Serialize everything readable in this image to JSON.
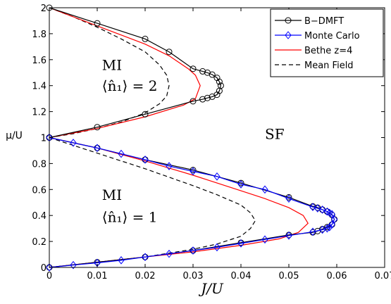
{
  "chart_data": {
    "type": "line",
    "xlabel": "J/U",
    "ylabel": "μ/U",
    "xlim": [
      0,
      0.07
    ],
    "ylim": [
      0,
      2
    ],
    "xticks": [
      0,
      0.01,
      0.02,
      0.03,
      0.04,
      0.05,
      0.06,
      0.07
    ],
    "xtick_labels": [
      "0",
      "0.01",
      "0.02",
      "0.03",
      "0.04",
      "0.05",
      "0.06",
      "0.07"
    ],
    "yticks": [
      0,
      0.2,
      0.4,
      0.6,
      0.8,
      1,
      1.2,
      1.4,
      1.6,
      1.8,
      2
    ],
    "ytick_labels": [
      "0",
      "0.2",
      "0.4",
      "0.6",
      "0.8",
      "1",
      "1.2",
      "1.4",
      "1.6",
      "1.8",
      "2"
    ],
    "grid": false,
    "legend_position": "top-right",
    "annotations": [
      {
        "text": "MI",
        "x": 0.011,
        "y": 1.52
      },
      {
        "text": "⟨n̂₁⟩ = 2",
        "x": 0.011,
        "y": 1.36
      },
      {
        "text": "SF",
        "x": 0.045,
        "y": 0.99
      },
      {
        "text": "MI",
        "x": 0.011,
        "y": 0.52
      },
      {
        "text": "⟨n̂₁⟩ = 1",
        "x": 0.011,
        "y": 0.35
      }
    ],
    "series": [
      {
        "name": "B−DMFT",
        "color": "#000000",
        "marker": "circle",
        "dash": "",
        "lobes": [
          {
            "x": [
              0,
              0.01,
              0.02,
              0.03,
              0.032,
              0.033,
              0.034,
              0.035,
              0.0355,
              0.0358,
              0.0355,
              0.035,
              0.034,
              0.033,
              0.032,
              0.03,
              0.025,
              0.02,
              0.01,
              0
            ],
            "y": [
              1.0,
              1.08,
              1.18,
              1.28,
              1.295,
              1.305,
              1.315,
              1.33,
              1.36,
              1.4,
              1.43,
              1.46,
              1.485,
              1.5,
              1.51,
              1.53,
              1.66,
              1.76,
              1.88,
              2.0
            ]
          },
          {
            "x": [
              0,
              0.01,
              0.02,
              0.03,
              0.04,
              0.05,
              0.055,
              0.056,
              0.057,
              0.058,
              0.059,
              0.0595,
              0.059,
              0.058,
              0.057,
              0.056,
              0.055,
              0.05,
              0.04,
              0.03,
              0.02,
              0.01,
              0
            ],
            "y": [
              0,
              0.04,
              0.08,
              0.13,
              0.19,
              0.25,
              0.27,
              0.28,
              0.295,
              0.31,
              0.33,
              0.37,
              0.405,
              0.43,
              0.445,
              0.46,
              0.47,
              0.54,
              0.65,
              0.75,
              0.83,
              0.92,
              1.0
            ]
          }
        ]
      },
      {
        "name": "Monte Carlo",
        "color": "#0000ff",
        "marker": "diamond",
        "dash": "",
        "lobes": [
          {
            "x": [
              0,
              0.005,
              0.01,
              0.015,
              0.02,
              0.025,
              0.03,
              0.035,
              0.04,
              0.045,
              0.05,
              0.055,
              0.057,
              0.058,
              0.0585,
              0.059,
              0.0595,
              0.059,
              0.0585,
              0.058,
              0.057,
              0.056,
              0.055,
              0.05,
              0.045,
              0.04,
              0.035,
              0.03,
              0.025,
              0.02,
              0.015,
              0.01,
              0.005,
              0
            ],
            "y": [
              0,
              0.018,
              0.035,
              0.055,
              0.08,
              0.105,
              0.13,
              0.155,
              0.185,
              0.215,
              0.245,
              0.275,
              0.29,
              0.3,
              0.31,
              0.33,
              0.37,
              0.41,
              0.42,
              0.43,
              0.445,
              0.455,
              0.465,
              0.53,
              0.6,
              0.64,
              0.7,
              0.74,
              0.78,
              0.83,
              0.875,
              0.92,
              0.96,
              1.0
            ]
          }
        ]
      },
      {
        "name": "Bethe z=4",
        "color": "#ff0000",
        "marker": "",
        "dash": "",
        "lobes": [
          {
            "x": [
              0,
              0.01,
              0.02,
              0.028,
              0.0305,
              0.0315,
              0.0305,
              0.029,
              0.027,
              0.025,
              0.02,
              0.01,
              0
            ],
            "y": [
              1.0,
              1.07,
              1.16,
              1.25,
              1.3,
              1.4,
              1.48,
              1.53,
              1.58,
              1.63,
              1.72,
              1.86,
              2.0
            ]
          },
          {
            "x": [
              0,
              0.01,
              0.02,
              0.03,
              0.04,
              0.048,
              0.052,
              0.054,
              0.053,
              0.05,
              0.045,
              0.04,
              0.03,
              0.02,
              0.01,
              0
            ],
            "y": [
              0,
              0.04,
              0.08,
              0.12,
              0.17,
              0.22,
              0.27,
              0.34,
              0.4,
              0.46,
              0.53,
              0.59,
              0.71,
              0.82,
              0.92,
              1.0
            ]
          }
        ]
      },
      {
        "name": "Mean Field",
        "color": "#000000",
        "marker": "",
        "dash": "6,4",
        "lobes": [
          {
            "x": [
              0,
              0.005,
              0.01,
              0.015,
              0.02,
              0.023,
              0.0245,
              0.025,
              0.0245,
              0.023,
              0.02,
              0.015,
              0.01,
              0.005,
              0
            ],
            "y": [
              1.0,
              1.03,
              1.07,
              1.12,
              1.19,
              1.26,
              1.32,
              1.4,
              1.48,
              1.56,
              1.66,
              1.76,
              1.85,
              1.93,
              2.0
            ]
          },
          {
            "x": [
              0,
              0.01,
              0.02,
              0.03,
              0.035,
              0.04,
              0.042,
              0.043,
              0.042,
              0.04,
              0.035,
              0.03,
              0.02,
              0.01,
              0
            ],
            "y": [
              0,
              0.04,
              0.08,
              0.14,
              0.18,
              0.24,
              0.3,
              0.36,
              0.42,
              0.48,
              0.56,
              0.63,
              0.76,
              0.88,
              1.0
            ]
          }
        ]
      }
    ]
  }
}
